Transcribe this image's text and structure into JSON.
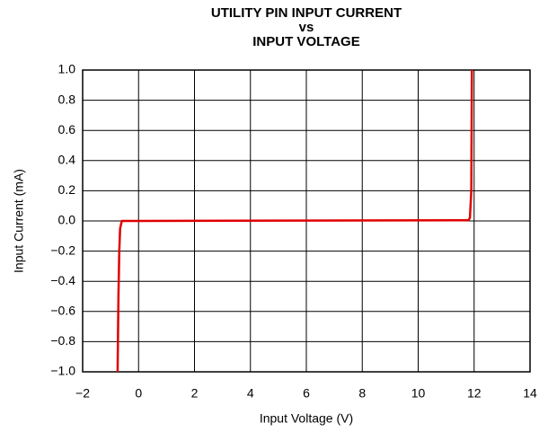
{
  "chart_data": {
    "type": "line",
    "title": [
      "UTILITY PIN INPUT CURRENT",
      "vs",
      "INPUT VOLTAGE"
    ],
    "x_label": "Input Voltage (V)",
    "y_label": "Input Current (mA)",
    "x": [
      -0.75,
      -0.72,
      -0.69,
      -0.66,
      -0.6,
      0,
      11.8,
      11.85,
      11.9,
      11.92
    ],
    "series": [
      {
        "name": "Input Current",
        "color": "#e00000",
        "values": [
          -1.0,
          -0.5,
          -0.2,
          -0.05,
          0,
          0,
          0.005,
          0.02,
          0.2,
          1.0
        ]
      }
    ],
    "xlim": [
      -2,
      14
    ],
    "xticks": [
      {
        "value": -2,
        "label": "−2"
      },
      0,
      2,
      4,
      6,
      8,
      10,
      12,
      14
    ],
    "ylim": [
      -1.0,
      1.0
    ],
    "yticks": [
      {
        "value": 1.0,
        "label": "1.0"
      },
      {
        "value": 0.8,
        "label": "0.8"
      },
      {
        "value": 0.6,
        "label": "0.6"
      },
      {
        "value": 0.4,
        "label": "0.4"
      },
      {
        "value": 0.2,
        "label": "0.2"
      },
      {
        "value": 0.0,
        "label": "0.0"
      },
      {
        "value": -0.2,
        "label": "−0.2"
      },
      {
        "value": -0.4,
        "label": "−0.4"
      },
      {
        "value": -0.6,
        "label": "−0.6"
      },
      {
        "value": -0.8,
        "label": "−0.8"
      },
      {
        "value": -1.0,
        "label": "−1.0"
      }
    ],
    "grid": true
  }
}
